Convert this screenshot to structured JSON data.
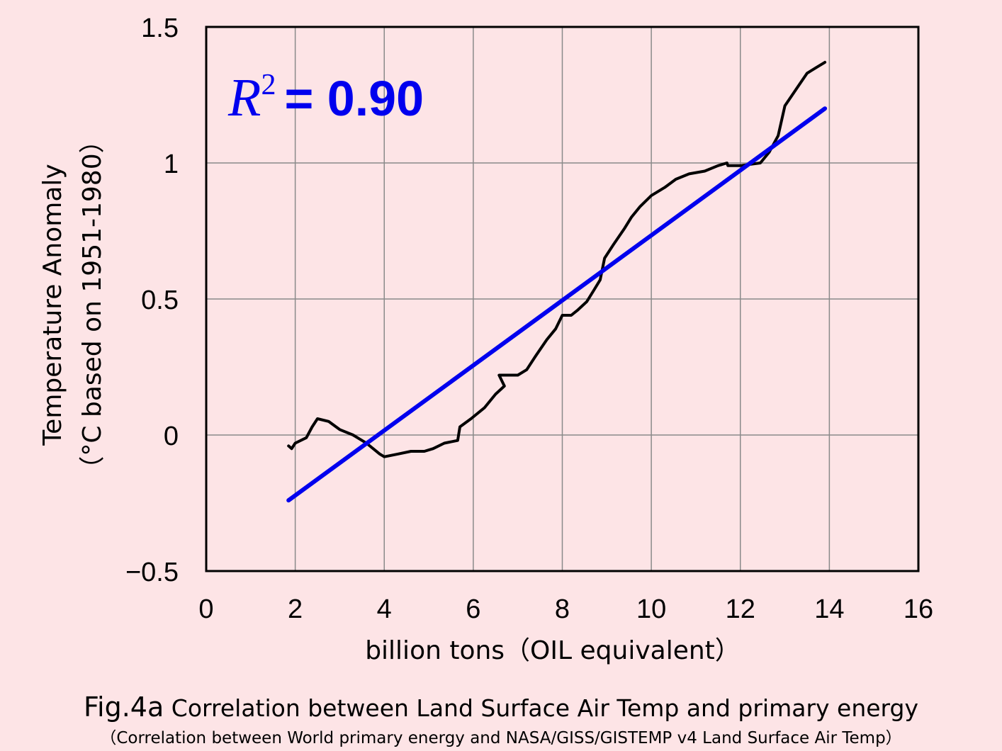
{
  "chart_data": {
    "type": "line",
    "xlabel": "billion tons（OIL equivalent）",
    "ylabel_line1": "Temperature Anomaly",
    "ylabel_line2": "（°C  based on 1951-1980）",
    "xlim": [
      0,
      16
    ],
    "ylim": [
      -0.5,
      1.5
    ],
    "x_ticks": [
      0,
      2,
      4,
      6,
      8,
      10,
      12,
      14,
      16
    ],
    "x_tick_labels": [
      "0",
      "2",
      "4",
      "6",
      "8",
      "10",
      "12",
      "14",
      "16"
    ],
    "y_ticks": [
      -0.5,
      0,
      0.5,
      1,
      1.5
    ],
    "y_tick_labels": [
      "−0.5",
      "0",
      "0.5",
      "1",
      "1.5"
    ],
    "grid": true,
    "annotation": {
      "r_symbol": "R",
      "r_exp": "2",
      "r_value": "= 0.90",
      "color": "#0000ee"
    },
    "series": [
      {
        "color": "#000000",
        "points": [
          [
            1.85,
            -0.04
          ],
          [
            1.92,
            -0.05
          ],
          [
            2.0,
            -0.03
          ],
          [
            2.25,
            -0.01
          ],
          [
            2.38,
            0.03
          ],
          [
            2.5,
            0.06
          ],
          [
            2.75,
            0.05
          ],
          [
            3.0,
            0.02
          ],
          [
            3.3,
            0.0
          ],
          [
            3.6,
            -0.03
          ],
          [
            3.9,
            -0.07
          ],
          [
            4.0,
            -0.08
          ],
          [
            4.3,
            -0.07
          ],
          [
            4.6,
            -0.06
          ],
          [
            4.9,
            -0.06
          ],
          [
            5.1,
            -0.05
          ],
          [
            5.35,
            -0.03
          ],
          [
            5.65,
            -0.02
          ],
          [
            5.7,
            0.03
          ],
          [
            5.95,
            0.06
          ],
          [
            6.25,
            0.1
          ],
          [
            6.5,
            0.15
          ],
          [
            6.7,
            0.18
          ],
          [
            6.58,
            0.22
          ],
          [
            6.75,
            0.22
          ],
          [
            7.0,
            0.22
          ],
          [
            7.2,
            0.24
          ],
          [
            7.4,
            0.29
          ],
          [
            7.65,
            0.35
          ],
          [
            7.85,
            0.39
          ],
          [
            8.0,
            0.44
          ],
          [
            8.2,
            0.44
          ],
          [
            8.35,
            0.46
          ],
          [
            8.55,
            0.49
          ],
          [
            8.7,
            0.53
          ],
          [
            8.85,
            0.57
          ],
          [
            8.95,
            0.65
          ],
          [
            9.15,
            0.7
          ],
          [
            9.4,
            0.76
          ],
          [
            9.55,
            0.8
          ],
          [
            9.75,
            0.84
          ],
          [
            10.0,
            0.88
          ],
          [
            10.3,
            0.91
          ],
          [
            10.55,
            0.94
          ],
          [
            10.85,
            0.96
          ],
          [
            11.2,
            0.97
          ],
          [
            11.5,
            0.99
          ],
          [
            11.7,
            1.0
          ],
          [
            11.72,
            0.99
          ],
          [
            12.0,
            0.99
          ],
          [
            12.45,
            1.0
          ],
          [
            12.65,
            1.04
          ],
          [
            12.85,
            1.1
          ],
          [
            13.0,
            1.21
          ],
          [
            13.25,
            1.27
          ],
          [
            13.5,
            1.33
          ],
          [
            13.7,
            1.35
          ],
          [
            13.9,
            1.37
          ]
        ]
      },
      {
        "color": "#0000ee",
        "points": [
          [
            1.85,
            -0.24
          ],
          [
            13.9,
            1.2
          ]
        ]
      }
    ]
  },
  "caption": {
    "fig_label": "Fig.4a",
    "title": "Correlation between Land Surface Air Temp and primary energy",
    "subtitle": "（Correlation between World primary energy and NASA/GISS/GISTEMP v4 Land Surface Air Temp）"
  }
}
